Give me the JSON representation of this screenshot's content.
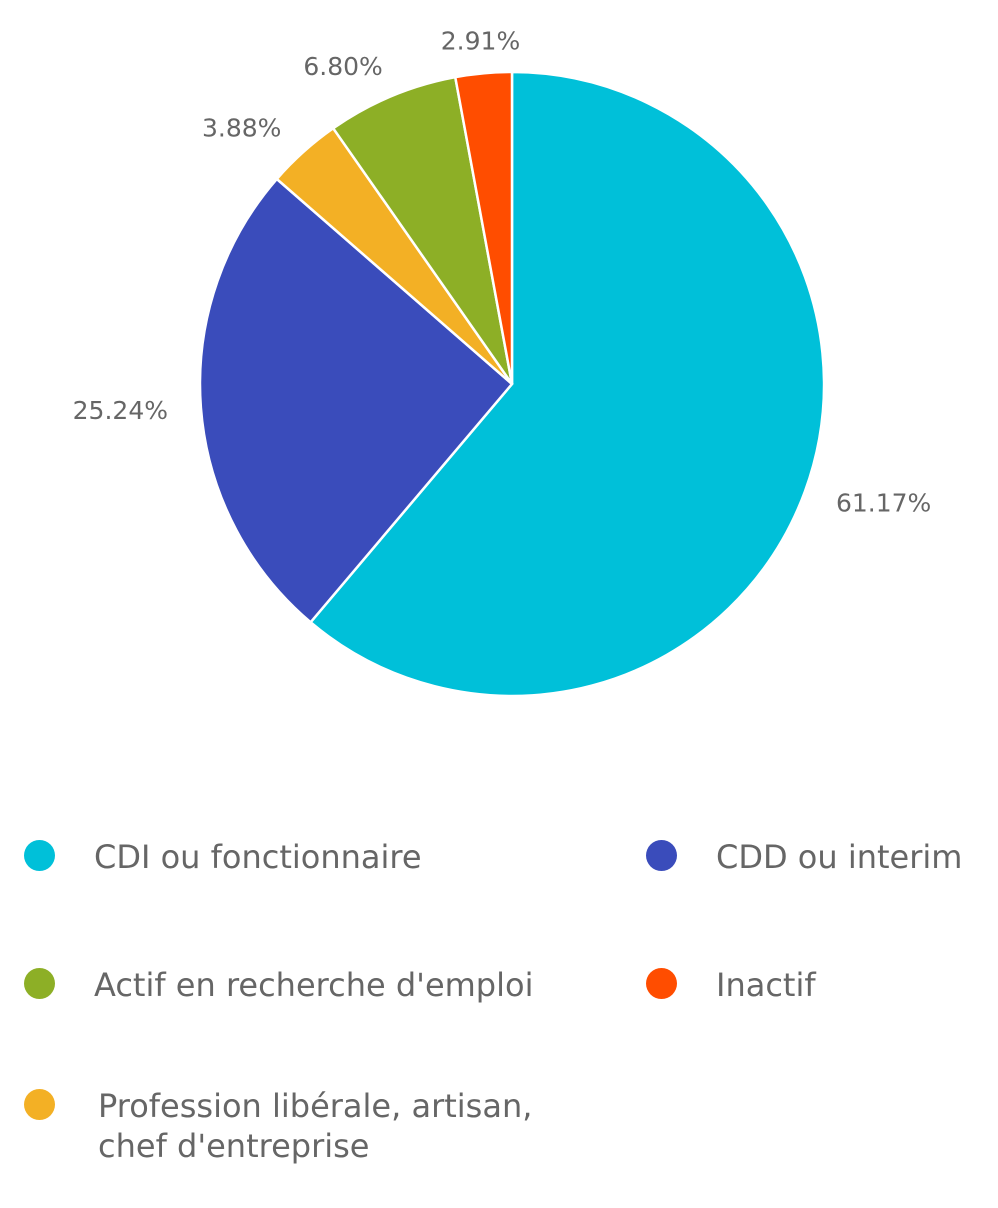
{
  "chart_data": {
    "type": "pie",
    "title": "",
    "slices": [
      {
        "name": "CDI ou fonctionnaire",
        "value": 61.17,
        "label": "61.17%",
        "color": "#00c0d9"
      },
      {
        "name": "CDD ou interim",
        "value": 25.24,
        "label": "25.24%",
        "color": "#3a4cbb"
      },
      {
        "name": "Profession libérale, artisan, chef d'entreprise",
        "value": 3.88,
        "label": "3.88%",
        "color": "#f3b025"
      },
      {
        "name": "Actif en recherche d'emploi",
        "value": 6.8,
        "label": "6.80%",
        "color": "#8daf26"
      },
      {
        "name": "Inactif",
        "value": 2.91,
        "label": "2.91%",
        "color": "#ff4d00"
      }
    ],
    "legend_position": "bottom"
  },
  "legend": [
    {
      "label": "CDI ou fonctionnaire",
      "color": "#00c0d9"
    },
    {
      "label": "CDD ou interim",
      "color": "#3a4cbb"
    },
    {
      "label": "Actif en recherche d'emploi",
      "color": "#8daf26"
    },
    {
      "label": "Inactif",
      "color": "#ff4d00"
    },
    {
      "label_line1": "Profession libérale, artisan,",
      "label_line2": "chef d'entreprise",
      "color": "#f3b025"
    }
  ]
}
